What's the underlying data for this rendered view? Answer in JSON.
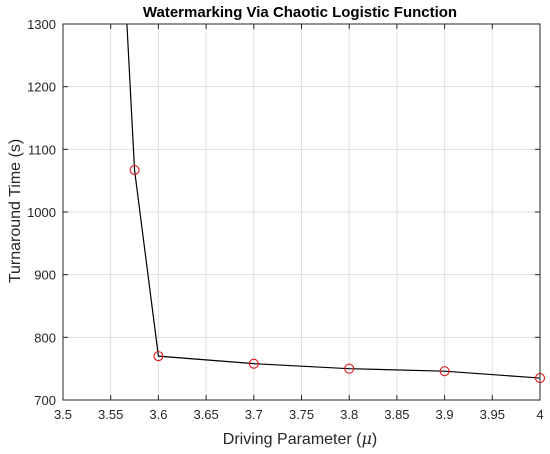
{
  "chart_data": {
    "type": "line",
    "title": "Watermarking Via Chaotic Logistic Function",
    "xlabel": "Driving Parameter (",
    "xlabel_symbol": "μ",
    "xlabel_close": ")",
    "ylabel": "Turnaround Time (s)",
    "xlim": [
      3.5,
      4.0
    ],
    "ylim": [
      700,
      1300
    ],
    "grid": true,
    "x_ticks": [
      "3.5",
      "3.55",
      "3.6",
      "3.65",
      "3.7",
      "3.75",
      "3.8",
      "3.85",
      "3.9",
      "3.95",
      "4"
    ],
    "y_ticks": [
      "700",
      "800",
      "900",
      "1000",
      "1100",
      "1200",
      "1300"
    ],
    "series": [
      {
        "x": [
          3.567,
          3.575,
          3.6,
          3.7,
          3.8,
          3.9,
          4.0
        ],
        "y": [
          1300,
          1067,
          770,
          758,
          750,
          746,
          735
        ],
        "marker_shown": [
          false,
          true,
          true,
          true,
          true,
          true,
          true
        ],
        "line_color": "#000000",
        "marker_color": "#e41a1c"
      }
    ]
  }
}
